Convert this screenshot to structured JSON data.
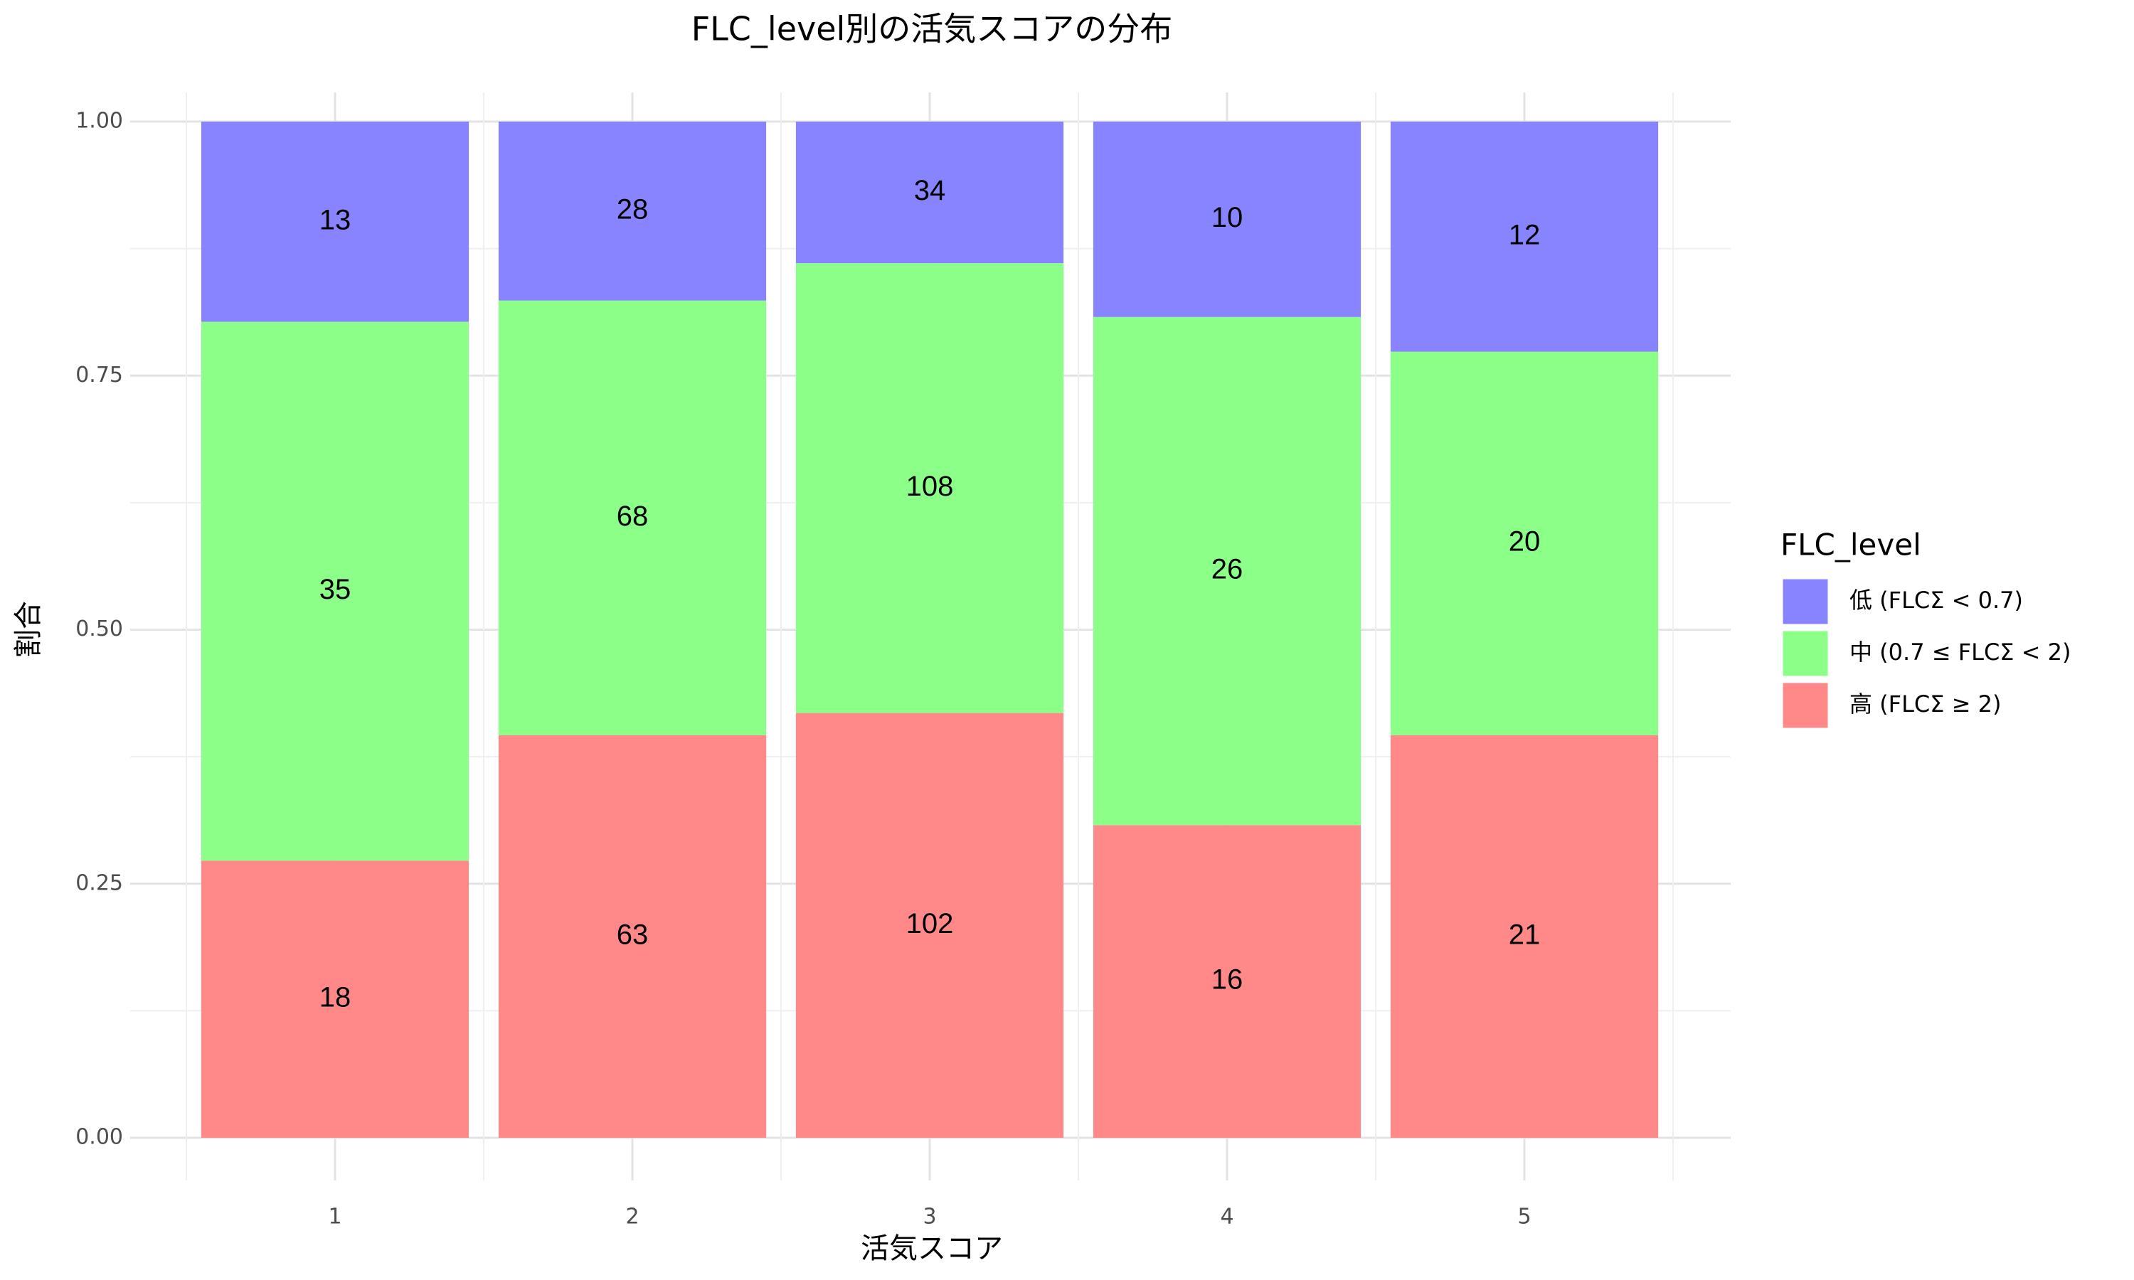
{
  "chart_data": {
    "type": "bar",
    "position": "fill",
    "title": "FLC_level別の活気スコアの分布",
    "x_label": "活気スコア",
    "y_label": "割合",
    "categories": [
      "1",
      "2",
      "3",
      "4",
      "5"
    ],
    "legend_title": "FLC_level",
    "legend": "right",
    "grid": true,
    "ylim": [
      0,
      1
    ],
    "yticks": [
      {
        "value": 0,
        "label": "0.00"
      },
      0.25,
      {
        "value": 0.5,
        "label": "0.50"
      },
      0.75,
      {
        "value": 1,
        "label": "1.00"
      }
    ],
    "series": [
      {
        "name": "低 (FLCΣ < 0.7)",
        "color": "#8884ff",
        "values": [
          13,
          28,
          34,
          10,
          12
        ]
      },
      {
        "name": "中 (0.7 ≤ FLCΣ < 2)",
        "color": "#8bff88",
        "values": [
          35,
          68,
          108,
          26,
          20
        ]
      },
      {
        "name": "高 (FLCΣ ≥ 2)",
        "color": "#ff8888",
        "values": [
          18,
          63,
          102,
          16,
          21
        ]
      }
    ]
  }
}
